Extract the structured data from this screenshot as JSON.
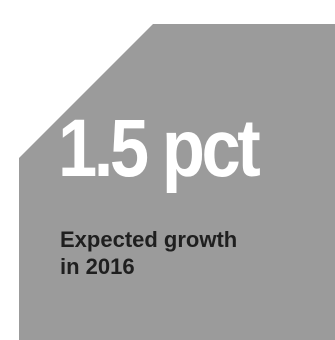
{
  "infographic": {
    "stat_value": "1.5 pct",
    "caption_line1": "Expected growth",
    "caption_line2": "in 2016"
  },
  "colors": {
    "panel_fill": "#9b9b9b",
    "stat_text": "#ffffff",
    "caption_text": "#1f1f1f",
    "background": "#ffffff"
  }
}
